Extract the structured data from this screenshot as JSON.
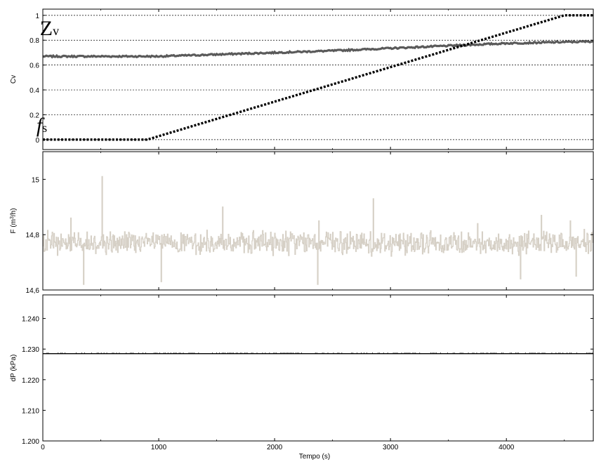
{
  "colors": {
    "zv": "#5a5a5a",
    "fs": "#000000",
    "flow": "#d6d0c6",
    "dp": "#000000",
    "grid": "#000000",
    "frame": "#000000"
  },
  "chart_data": [
    {
      "type": "line",
      "ylabel": "Cv",
      "xlim": [
        0,
        4750
      ],
      "ylim": [
        -0.08,
        1.05
      ],
      "yticks": [
        0,
        0.2,
        0.4,
        0.6,
        0.8,
        1
      ],
      "ytick_labels": [
        "0",
        "0.2",
        "0.4",
        "0.6",
        "0.8",
        "1"
      ],
      "grid": "horizontal dashed",
      "annotations": [
        {
          "text": "Z",
          "sub": "v",
          "series": "zv",
          "at_x": 350,
          "at_y": 0.84
        },
        {
          "text": "f",
          "sub": "s",
          "series": "fs",
          "at_x": 320,
          "at_y": 0.06
        }
      ],
      "series": [
        {
          "key": "zv",
          "style": "solid-thick",
          "x": [
            0,
            500,
            1000,
            1500,
            2000,
            2500,
            3000,
            3500,
            4000,
            4500,
            4750
          ],
          "y": [
            0.67,
            0.67,
            0.67,
            0.685,
            0.7,
            0.715,
            0.735,
            0.755,
            0.775,
            0.785,
            0.79
          ]
        },
        {
          "key": "fs",
          "style": "dotted",
          "x": [
            0,
            900,
            4500,
            4750
          ],
          "y": [
            0,
            0,
            1,
            1
          ]
        }
      ]
    },
    {
      "type": "line",
      "ylabel": "F (m3/h)",
      "ylabel_sup": "3",
      "xlim": [
        0,
        4750
      ],
      "ylim": [
        14.6,
        15.1
      ],
      "yticks": [
        14.6,
        14.8,
        15
      ],
      "ytick_labels": [
        "14,6",
        "14,8",
        "15"
      ],
      "grid": "none",
      "series": [
        {
          "key": "flow",
          "style": "noisy",
          "x_start": 0,
          "x_step": 5,
          "mean": 14.77,
          "amplitude": 0.05,
          "spike_x": [
            510,
            240,
            1550,
            2380,
            2850,
            3750,
            4300,
            4550
          ],
          "spike_y": [
            15.01,
            14.86,
            14.9,
            14.85,
            14.93,
            14.84,
            14.87,
            14.85
          ],
          "dip_x": [
            350,
            1020,
            2370,
            4120,
            4600
          ],
          "dip_y": [
            14.62,
            14.63,
            14.62,
            14.64,
            14.65
          ]
        }
      ]
    },
    {
      "type": "line",
      "ylabel": "dP (kPa)",
      "xlabel": "Tempo (s)",
      "xlim": [
        0,
        4750
      ],
      "ylim": [
        1.2,
        1.2477
      ],
      "yticks": [
        1.2,
        1.21,
        1.22,
        1.23,
        1.24
      ],
      "ytick_labels": [
        "1.200",
        "1.210",
        "1.220",
        "1.230",
        "1.240"
      ],
      "xticks": [
        0,
        1000,
        2000,
        3000,
        4000
      ],
      "xtick_labels": [
        "0",
        "1000",
        "2000",
        "3000",
        "4000"
      ],
      "grid": "none",
      "series": [
        {
          "key": "dp",
          "style": "solid",
          "x": [
            0,
            4750
          ],
          "y": [
            1.2285,
            1.2285
          ]
        }
      ]
    }
  ]
}
